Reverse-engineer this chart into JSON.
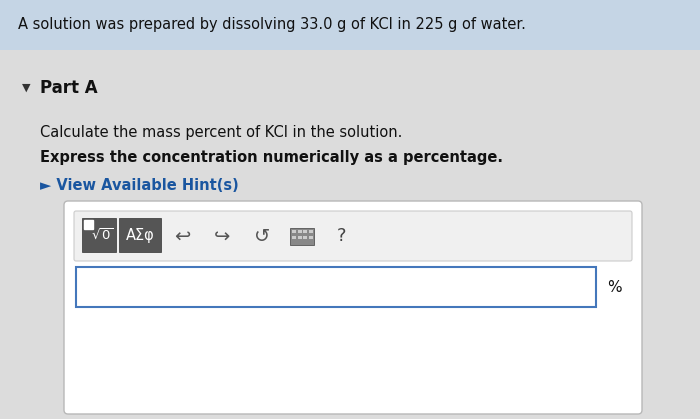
{
  "bg_color": "#dcdcdc",
  "header_bg": "#c5d5e5",
  "header_text": "A solution was prepared by dissolving 33.0 g of KCl in 225 g of water.",
  "part_label": "Part A",
  "instruction1": "Calculate the mass percent of KCl in the solution.",
  "instruction2": "Express the concentration numerically as a percentage.",
  "hint_text": "► View Available Hint(s)",
  "hint_color": "#1a56a0",
  "percent_label": "%",
  "outer_box_bg": "#ffffff",
  "outer_box_border": "#b8b8b8",
  "toolbar_bg": "#f0f0f0",
  "toolbar_border": "#cccccc",
  "input_bg": "#ffffff",
  "input_border": "#4477bb",
  "dark_btn_color": "#555555",
  "arrow_color": "#444444",
  "text_color": "#111111"
}
